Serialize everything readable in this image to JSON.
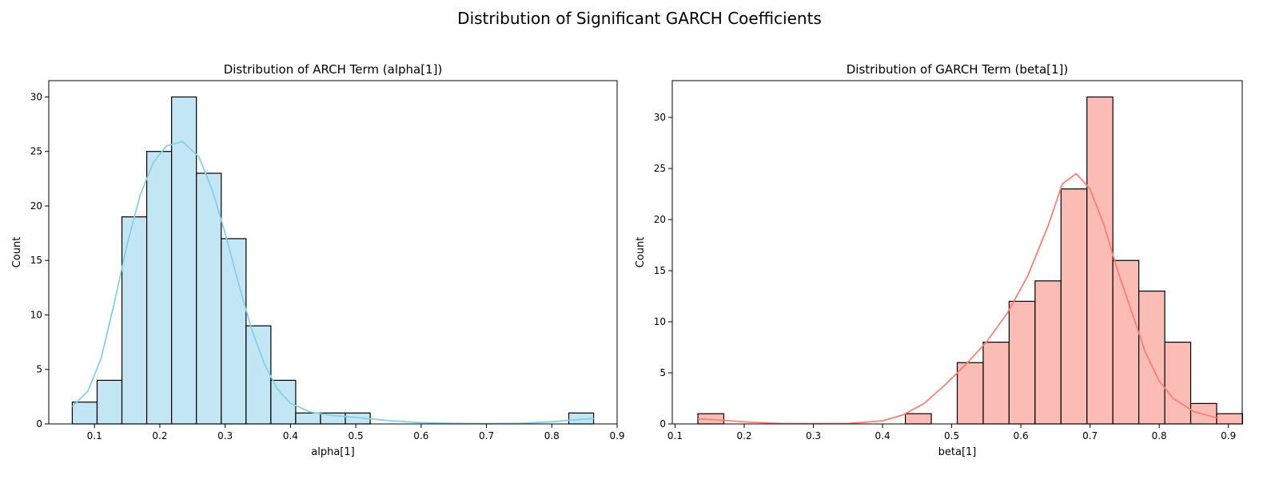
{
  "suptitle": "Distribution of Significant GARCH Coefficients",
  "chart_data": [
    {
      "type": "bar",
      "subtype": "histogram-with-kde",
      "title": "Distribution of ARCH Term (alpha[1])",
      "xlabel": "alpha[1]",
      "ylabel": "Count",
      "xlim": [
        0.03,
        0.9
      ],
      "ylim": [
        0,
        31.5
      ],
      "xticks": [
        "0.1",
        "0.2",
        "0.3",
        "0.4",
        "0.5",
        "0.6",
        "0.7",
        "0.8",
        "0.9"
      ],
      "yticks": [
        "0",
        "5",
        "10",
        "15",
        "20",
        "25",
        "30"
      ],
      "bin_start": 0.066,
      "bin_width": 0.038,
      "counts": [
        2,
        4,
        19,
        25,
        30,
        23,
        17,
        9,
        4,
        1,
        1,
        1,
        0,
        0,
        0,
        0,
        0,
        0,
        0,
        0,
        1
      ],
      "kde": [
        [
          0.066,
          1.6
        ],
        [
          0.09,
          3.0
        ],
        [
          0.11,
          6.0
        ],
        [
          0.13,
          11.0
        ],
        [
          0.15,
          16.5
        ],
        [
          0.17,
          21.0
        ],
        [
          0.19,
          24.0
        ],
        [
          0.21,
          25.5
        ],
        [
          0.235,
          25.9
        ],
        [
          0.26,
          24.5
        ],
        [
          0.28,
          21.5
        ],
        [
          0.3,
          17.5
        ],
        [
          0.32,
          13.0
        ],
        [
          0.34,
          8.8
        ],
        [
          0.36,
          5.5
        ],
        [
          0.38,
          3.2
        ],
        [
          0.4,
          1.9
        ],
        [
          0.43,
          1.1
        ],
        [
          0.46,
          0.8
        ],
        [
          0.5,
          0.6
        ],
        [
          0.55,
          0.3
        ],
        [
          0.6,
          0.12
        ],
        [
          0.65,
          0.05
        ],
        [
          0.7,
          0.02
        ],
        [
          0.75,
          0.05
        ],
        [
          0.8,
          0.2
        ],
        [
          0.84,
          0.4
        ],
        [
          0.866,
          0.5
        ]
      ],
      "color": "#87ceeb",
      "fill": "#c2e6f4",
      "edge": "#000000"
    },
    {
      "type": "bar",
      "subtype": "histogram-with-kde",
      "title": "Distribution of GARCH Term (beta[1])",
      "xlabel": "beta[1]",
      "ylabel": "Count",
      "xlim": [
        0.096,
        0.92
      ],
      "ylim": [
        0,
        33.6
      ],
      "xticks": [
        "0.1",
        "0.2",
        "0.3",
        "0.4",
        "0.5",
        "0.6",
        "0.7",
        "0.8",
        "0.9"
      ],
      "yticks": [
        "0",
        "5",
        "10",
        "15",
        "20",
        "25",
        "30"
      ],
      "bin_start": 0.133,
      "bin_width": 0.0375,
      "counts": [
        1,
        0,
        0,
        0,
        0,
        0,
        0,
        0,
        1,
        0,
        6,
        8,
        12,
        14,
        23,
        32,
        16,
        13,
        8,
        2,
        1
      ],
      "kde": [
        [
          0.133,
          0.5
        ],
        [
          0.16,
          0.4
        ],
        [
          0.2,
          0.2
        ],
        [
          0.25,
          0.05
        ],
        [
          0.3,
          0.02
        ],
        [
          0.35,
          0.05
        ],
        [
          0.4,
          0.3
        ],
        [
          0.43,
          0.9
        ],
        [
          0.46,
          2.0
        ],
        [
          0.49,
          3.8
        ],
        [
          0.52,
          5.8
        ],
        [
          0.55,
          8.0
        ],
        [
          0.58,
          10.8
        ],
        [
          0.61,
          14.5
        ],
        [
          0.64,
          19.5
        ],
        [
          0.66,
          23.5
        ],
        [
          0.68,
          24.5
        ],
        [
          0.7,
          23.0
        ],
        [
          0.72,
          19.5
        ],
        [
          0.74,
          15.0
        ],
        [
          0.76,
          11.0
        ],
        [
          0.78,
          7.0
        ],
        [
          0.8,
          4.2
        ],
        [
          0.82,
          2.5
        ],
        [
          0.85,
          1.2
        ],
        [
          0.883,
          0.6
        ]
      ],
      "color": "#fa8072",
      "fill": "#fbbcb5",
      "edge": "#000000"
    }
  ]
}
